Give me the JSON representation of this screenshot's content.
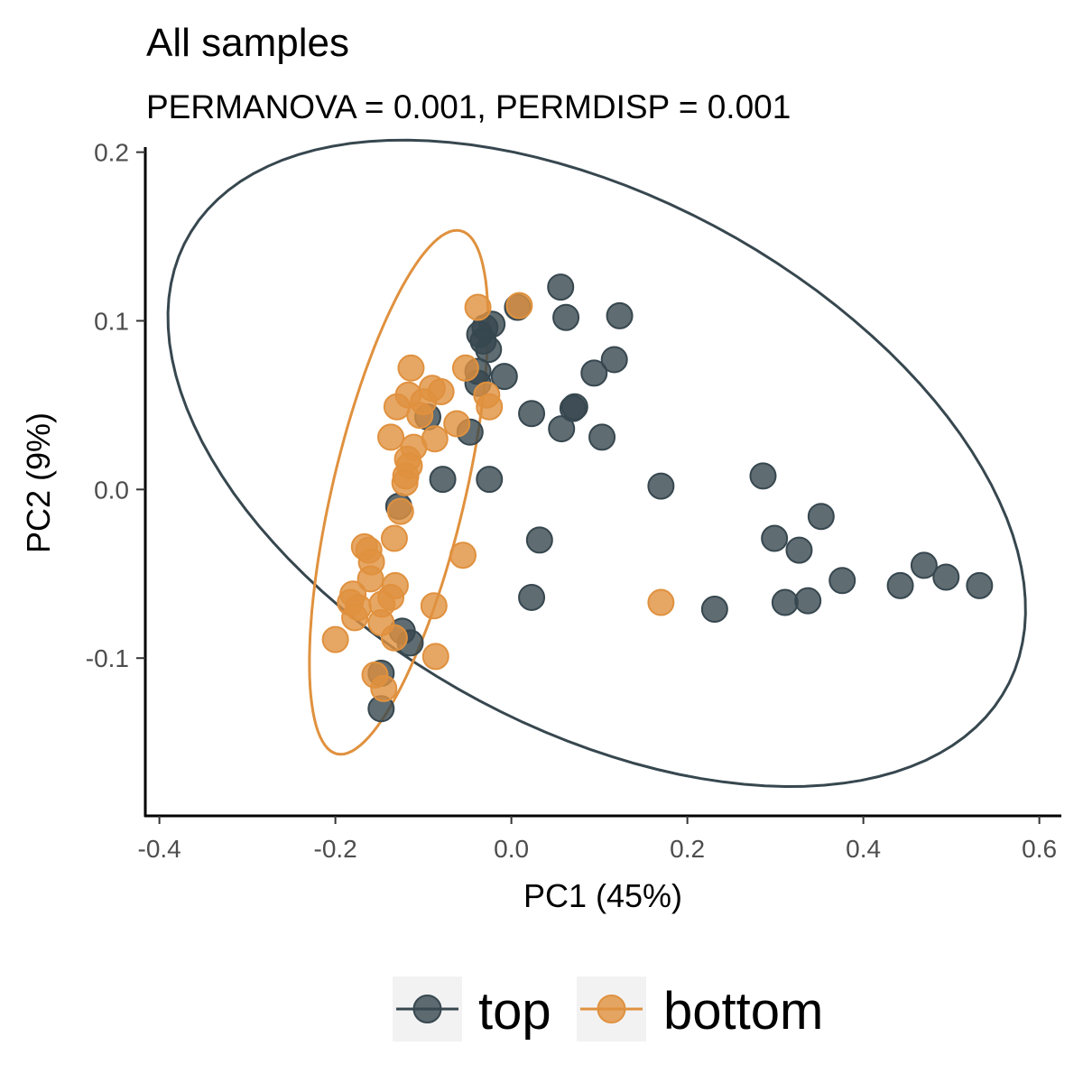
{
  "chart_data": {
    "type": "scatter",
    "title": "All samples",
    "subtitle": "PERMANOVA = 0.001, PERMDISP = 0.001",
    "xlabel": "PC1 (45%)",
    "ylabel": "PC2 (9%)",
    "xlim": [
      -0.415,
      0.625
    ],
    "ylim": [
      -0.193,
      0.203
    ],
    "x_ticks": [
      {
        "value": -0.4,
        "label": "-0.4"
      },
      {
        "value": -0.2,
        "label": "-0.2"
      },
      {
        "value": 0.0,
        "label": "0.0"
      },
      {
        "value": 0.2,
        "label": "0.2"
      },
      {
        "value": 0.4,
        "label": "0.4"
      },
      {
        "value": 0.6,
        "label": "0.6"
      }
    ],
    "y_ticks": [
      {
        "value": 0.2,
        "label": "0.2"
      },
      {
        "value": 0.1,
        "label": "0.1"
      },
      {
        "value": 0.0,
        "label": "0.0"
      },
      {
        "value": -0.1,
        "label": "-0.1"
      }
    ],
    "grid": false,
    "legend_position": "bottom",
    "series": [
      {
        "name": "top",
        "color": "#37474F",
        "points": [
          [
            0.056,
            0.12
          ],
          [
            0.062,
            0.102
          ],
          [
            0.123,
            0.103
          ],
          [
            0.007,
            0.108
          ],
          [
            -0.022,
            0.098
          ],
          [
            -0.03,
            0.096
          ],
          [
            -0.036,
            0.092
          ],
          [
            -0.032,
            0.088
          ],
          [
            -0.026,
            0.083
          ],
          [
            0.117,
            0.077
          ],
          [
            0.094,
            0.069
          ],
          [
            -0.008,
            0.067
          ],
          [
            -0.038,
            0.07
          ],
          [
            -0.038,
            0.063
          ],
          [
            0.072,
            0.049
          ],
          [
            0.07,
            0.048
          ],
          [
            0.023,
            0.045
          ],
          [
            -0.095,
            0.043
          ],
          [
            0.057,
            0.036
          ],
          [
            -0.047,
            0.034
          ],
          [
            0.103,
            0.031
          ],
          [
            -0.078,
            0.006
          ],
          [
            -0.025,
            0.006
          ],
          [
            0.17,
            0.002
          ],
          [
            0.286,
            0.008
          ],
          [
            -0.128,
            -0.01
          ],
          [
            0.352,
            -0.016
          ],
          [
            0.299,
            -0.029
          ],
          [
            0.032,
            -0.03
          ],
          [
            0.327,
            -0.036
          ],
          [
            0.376,
            -0.054
          ],
          [
            0.469,
            -0.045
          ],
          [
            0.494,
            -0.052
          ],
          [
            0.532,
            -0.057
          ],
          [
            0.442,
            -0.057
          ],
          [
            0.023,
            -0.064
          ],
          [
            0.311,
            -0.067
          ],
          [
            0.337,
            -0.066
          ],
          [
            0.231,
            -0.071
          ],
          [
            -0.124,
            -0.084
          ],
          [
            -0.115,
            -0.091
          ],
          [
            -0.148,
            -0.109
          ],
          [
            -0.148,
            -0.13
          ]
        ],
        "ellipse": {
          "cx": 0.097,
          "cy": 0.0155,
          "a": 0.496,
          "b": 0.168,
          "angle_deg": -11.4
        }
      },
      {
        "name": "bottom",
        "color": "#E0913E",
        "points": [
          [
            0.009,
            0.109
          ],
          [
            -0.038,
            0.108
          ],
          [
            -0.114,
            0.072
          ],
          [
            -0.052,
            0.072
          ],
          [
            -0.08,
            0.058
          ],
          [
            -0.09,
            0.06
          ],
          [
            -0.117,
            0.056
          ],
          [
            -0.028,
            0.056
          ],
          [
            -0.1,
            0.052
          ],
          [
            -0.13,
            0.049
          ],
          [
            -0.025,
            0.049
          ],
          [
            -0.104,
            0.044
          ],
          [
            -0.062,
            0.039
          ],
          [
            -0.087,
            0.03
          ],
          [
            -0.137,
            0.031
          ],
          [
            -0.111,
            0.025
          ],
          [
            -0.118,
            0.018
          ],
          [
            -0.116,
            0.014
          ],
          [
            -0.12,
            0.008
          ],
          [
            -0.121,
            0.004
          ],
          [
            -0.126,
            -0.013
          ],
          [
            -0.133,
            -0.029
          ],
          [
            -0.167,
            -0.034
          ],
          [
            -0.162,
            -0.036
          ],
          [
            -0.159,
            -0.043
          ],
          [
            -0.055,
            -0.039
          ],
          [
            -0.16,
            -0.053
          ],
          [
            -0.132,
            -0.057
          ],
          [
            -0.18,
            -0.062
          ],
          [
            -0.137,
            -0.064
          ],
          [
            -0.147,
            -0.068
          ],
          [
            -0.183,
            -0.067
          ],
          [
            -0.088,
            -0.069
          ],
          [
            -0.174,
            -0.07
          ],
          [
            -0.178,
            -0.076
          ],
          [
            -0.148,
            -0.079
          ],
          [
            0.17,
            -0.067
          ],
          [
            -0.2,
            -0.089
          ],
          [
            -0.133,
            -0.088
          ],
          [
            -0.086,
            -0.099
          ],
          [
            -0.155,
            -0.11
          ],
          [
            -0.145,
            -0.118
          ]
        ],
        "ellipse": {
          "cx": -0.128,
          "cy": -0.0017,
          "a": 0.172,
          "b": 0.0697,
          "angle_deg": 62.0
        }
      }
    ]
  }
}
